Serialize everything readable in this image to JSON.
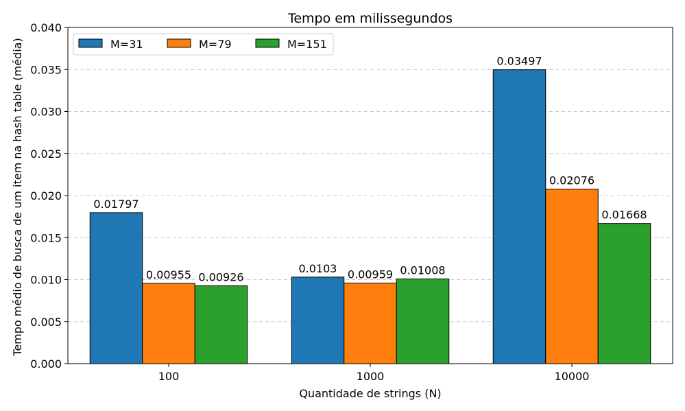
{
  "chart_data": {
    "type": "bar",
    "title": "Tempo em milissegundos",
    "xlabel": "Quantidade de strings (N)",
    "ylabel": "Tempo médio de busca de um item na hash table (média)",
    "categories": [
      "100",
      "1000",
      "10000"
    ],
    "series": [
      {
        "name": "M=31",
        "color": "#1f77b4",
        "values": [
          0.01797,
          0.0103,
          0.03497
        ],
        "labels": [
          "0.01797",
          "0.0103",
          "0.03497"
        ]
      },
      {
        "name": "M=79",
        "color": "#ff7f0e",
        "values": [
          0.00955,
          0.00959,
          0.02076
        ],
        "labels": [
          "0.00955",
          "0.00959",
          "0.02076"
        ]
      },
      {
        "name": "M=151",
        "color": "#2ca02c",
        "values": [
          0.00926,
          0.01008,
          0.01668
        ],
        "labels": [
          "0.00926",
          "0.01008",
          "0.01668"
        ]
      }
    ],
    "ylim": [
      0,
      0.04
    ],
    "yticks": [
      "0.000",
      "0.005",
      "0.010",
      "0.015",
      "0.020",
      "0.025",
      "0.030",
      "0.035",
      "0.040"
    ],
    "grid": "y-dashed",
    "legend_position": "top-left"
  }
}
